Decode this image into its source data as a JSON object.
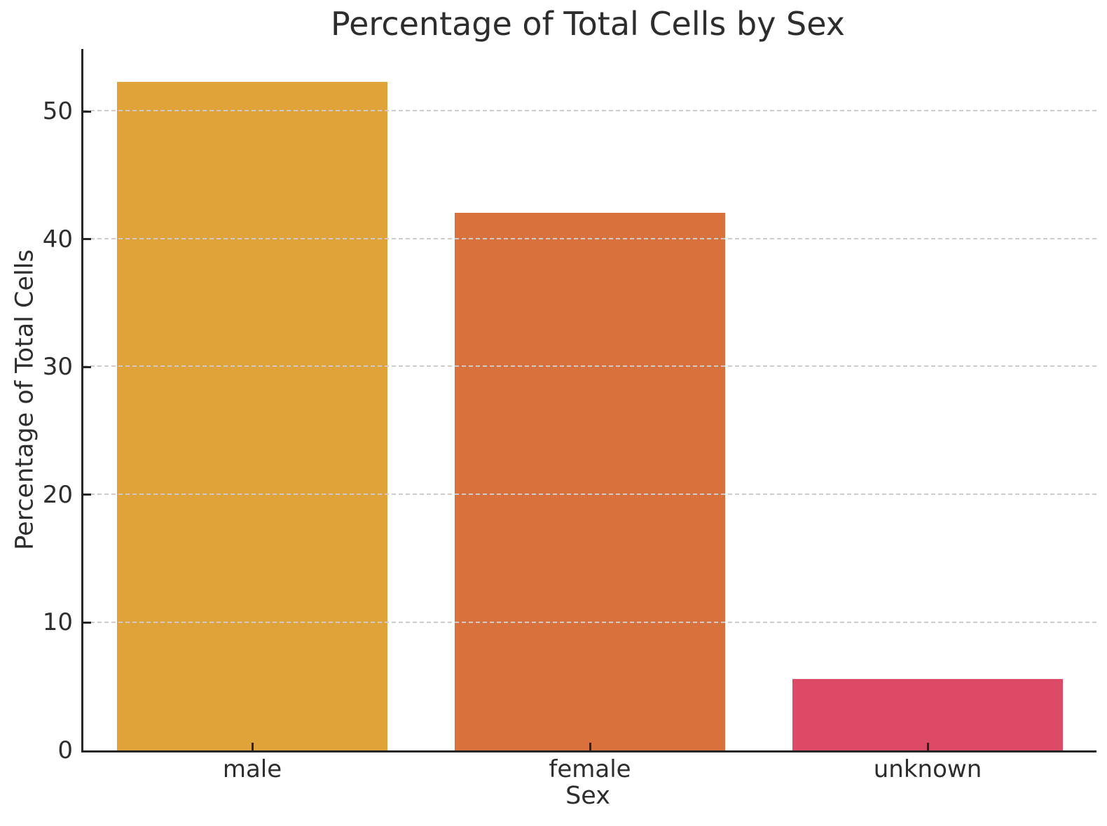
{
  "chart_data": {
    "type": "bar",
    "title": "Percentage of Total Cells by Sex",
    "xlabel": "Sex",
    "ylabel": "Percentage of Total Cells",
    "categories": [
      "male",
      "female",
      "unknown"
    ],
    "values": [
      52.3,
      42.1,
      5.6
    ],
    "colors": [
      "#e0a339",
      "#d8713c",
      "#dd4a66"
    ],
    "ylim": [
      0,
      54.9
    ],
    "yticks": [
      0,
      10,
      20,
      30,
      40,
      50
    ],
    "bar_width_fraction": 0.8,
    "grid": "horizontal-dashed",
    "grid_over_bars": true,
    "tick_direction": "in",
    "legend": "none",
    "styles": {
      "grid_color": "#cccccc",
      "spine_color": "#262626",
      "text_color": "#2d2d2d",
      "background_color": "#ffffff"
    }
  }
}
